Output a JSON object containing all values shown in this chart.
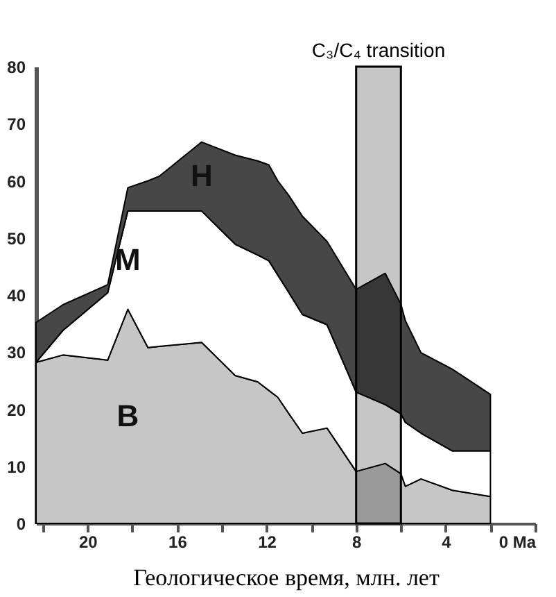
{
  "chart_data": {
    "type": "area",
    "stacked": true,
    "xlabel": "Геологическое время, млн. лет",
    "x": [
      22.3,
      21.1,
      19.1,
      18.2,
      17.3,
      16.8,
      14.9,
      13.4,
      12.4,
      11.9,
      11.5,
      11,
      10.4,
      9.3,
      8,
      6.7,
      6,
      5.8,
      5.1,
      3.7,
      2
    ],
    "series": [
      {
        "name": "B",
        "color": "#c6c6c6",
        "values": [
          28.2,
          29.5,
          28.6,
          37.5,
          30.8,
          31,
          31.7,
          25.9,
          24.8,
          23.3,
          22.1,
          19.2,
          15.8,
          16.7,
          9.1,
          10.5,
          8.7,
          6.5,
          7.8,
          5.8,
          4.7
        ]
      },
      {
        "name": "M",
        "color": "#ffffff",
        "values": [
          0,
          4.3,
          11.8,
          17.2,
          23.9,
          23.7,
          23.0,
          23.0,
          22.2,
          22.7,
          21.4,
          21.2,
          20.8,
          18.1,
          13.9,
          10.3,
          10.5,
          11.2,
          8.0,
          6.9,
          8.0
        ]
      },
      {
        "name": "H",
        "color": "#474747",
        "values": [
          7.0,
          4.5,
          1.4,
          4.1,
          5.3,
          6.1,
          12.1,
          15.6,
          16.5,
          16.8,
          16.5,
          17.0,
          17.2,
          14.6,
          18.0,
          23.0,
          19.2,
          17.8,
          14.1,
          14.3,
          9.9
        ]
      }
    ],
    "xlim": [
      22.3,
      0
    ],
    "ylim": [
      0,
      80
    ],
    "xticks": [
      {
        "value": 22,
        "label": null
      },
      20,
      {
        "value": 18,
        "label": null
      },
      16,
      {
        "value": 14,
        "label": null
      },
      12,
      {
        "value": 10,
        "label": null
      },
      8,
      {
        "value": 6,
        "label": null
      },
      4,
      {
        "value": 2,
        "label": null
      },
      {
        "value": 0,
        "label": "0 Ma"
      }
    ],
    "yticks": [
      0,
      10,
      20,
      30,
      40,
      50,
      60,
      70,
      80
    ],
    "bands": [
      {
        "axis": "x",
        "from": 8,
        "to": 6,
        "label": "C₃/C₄ transition",
        "color": "#c6c6c6"
      }
    ],
    "legend": false,
    "grid": false
  }
}
